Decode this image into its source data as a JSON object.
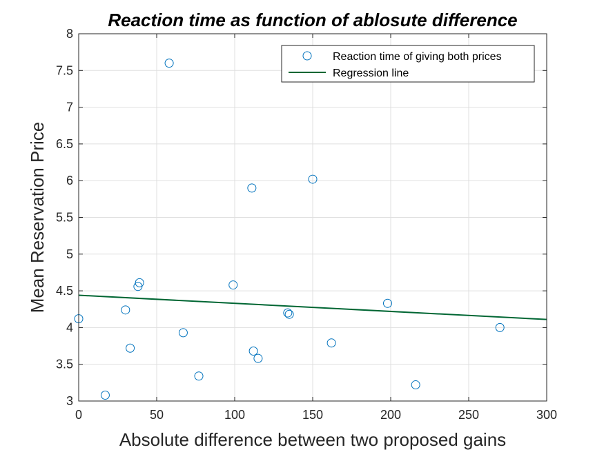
{
  "chart_data": {
    "type": "scatter",
    "title": "Reaction time as function of ablosute difference",
    "xlabel": "Absolute difference between two proposed gains",
    "ylabel": "Mean Reservation Price",
    "xlim": [
      0,
      300
    ],
    "ylim": [
      3,
      8
    ],
    "xticks": [
      0,
      50,
      100,
      150,
      200,
      250,
      300
    ],
    "yticks": [
      3,
      3.5,
      4,
      4.5,
      5,
      5.5,
      6,
      6.5,
      7,
      7.5,
      8
    ],
    "ytick_labels": [
      "3",
      "3.5",
      "4",
      "4.5",
      "5",
      "5.5",
      "6",
      "6.5",
      "7",
      "7.5",
      "8"
    ],
    "grid": true,
    "legend_position": "top-right",
    "series": [
      {
        "name": "Reaction time of giving both prices",
        "kind": "markers",
        "marker": "circle-open",
        "color": "#0072BD",
        "points": [
          {
            "x": 0,
            "y": 4.12
          },
          {
            "x": 17,
            "y": 3.08
          },
          {
            "x": 30,
            "y": 4.24
          },
          {
            "x": 33,
            "y": 3.72
          },
          {
            "x": 38,
            "y": 4.56
          },
          {
            "x": 39,
            "y": 4.61
          },
          {
            "x": 58,
            "y": 7.6
          },
          {
            "x": 67,
            "y": 3.93
          },
          {
            "x": 77,
            "y": 3.34
          },
          {
            "x": 99,
            "y": 4.58
          },
          {
            "x": 111,
            "y": 5.9
          },
          {
            "x": 112,
            "y": 3.68
          },
          {
            "x": 115,
            "y": 3.58
          },
          {
            "x": 134,
            "y": 4.2
          },
          {
            "x": 135,
            "y": 4.18
          },
          {
            "x": 150,
            "y": 6.02
          },
          {
            "x": 162,
            "y": 3.79
          },
          {
            "x": 198,
            "y": 4.33
          },
          {
            "x": 216,
            "y": 3.22
          },
          {
            "x": 270,
            "y": 4.0
          }
        ]
      },
      {
        "name": "Regression line",
        "kind": "line",
        "color": "#006633",
        "points": [
          {
            "x": 0,
            "y": 4.44
          },
          {
            "x": 300,
            "y": 4.11
          }
        ]
      }
    ]
  }
}
